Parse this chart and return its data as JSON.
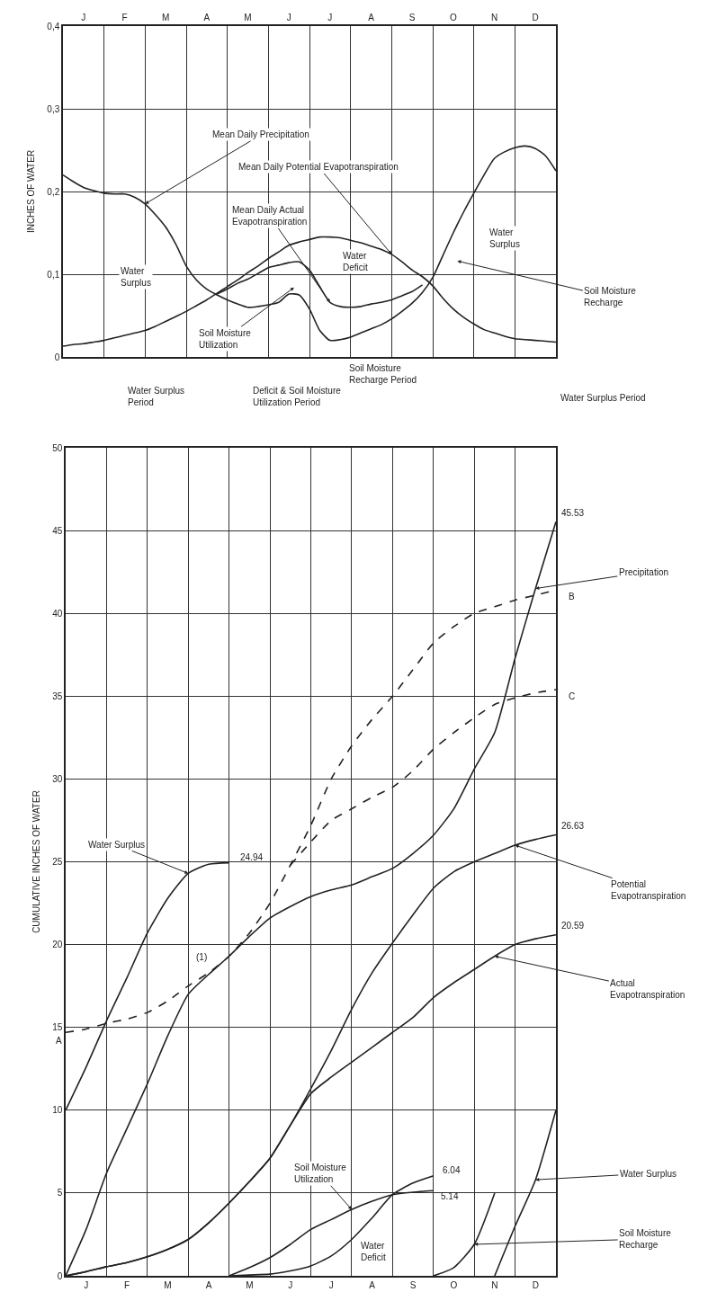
{
  "chart_data": [
    {
      "type": "line",
      "ylabel": "INCHES OF WATER",
      "categories": [
        null,
        null,
        "J",
        null,
        null,
        null,
        "F",
        null,
        null,
        null,
        "M",
        null,
        null,
        null,
        "A",
        null,
        null,
        null,
        "M",
        null,
        null,
        null,
        "J",
        null,
        null,
        null,
        "J",
        null,
        null,
        null,
        "A",
        null,
        null,
        null,
        "S",
        null,
        null,
        null,
        "O",
        null,
        null,
        null,
        "N",
        null,
        null,
        null,
        "D",
        null,
        null
      ],
      "ylim": [
        0,
        0.4
      ],
      "yticks": [
        0,
        {
          "value": 0.1,
          "label": "0,1"
        },
        {
          "value": 0.2,
          "label": "0,2"
        },
        {
          "value": 0.3,
          "label": "0,3"
        },
        {
          "value": 0.4,
          "label": "0,4"
        }
      ],
      "grid": true,
      "series": [
        {
          "name": "Mean Daily Precipitation",
          "color": "#222222",
          "values": [
            0.22,
            0.212,
            0.205,
            0.201,
            0.198,
            0.197,
            0.197,
            0.193,
            0.185,
            0.172,
            0.157,
            0.136,
            0.11,
            0.093,
            0.082,
            0.075,
            0.069,
            0.064,
            0.06,
            0.061,
            0.063,
            0.066,
            0.076,
            0.075,
            0.058,
            0.032,
            0.02,
            0.021,
            0.024,
            0.029,
            0.034,
            0.039,
            0.046,
            0.055,
            0.065,
            0.078,
            0.096,
            0.123,
            0.15,
            0.175,
            0.198,
            0.22,
            0.24,
            0.248,
            0.253,
            0.255,
            0.252,
            0.243,
            0.225
          ]
        },
        {
          "name": "Mean Daily Potential Evapotranspiration",
          "color": "#222222",
          "values": [
            0.013,
            0.015,
            0.016,
            0.018,
            0.02,
            0.023,
            0.026,
            0.029,
            0.032,
            0.037,
            0.043,
            0.049,
            0.055,
            0.062,
            0.069,
            0.077,
            0.085,
            0.093,
            0.102,
            0.11,
            0.119,
            0.127,
            0.135,
            0.139,
            0.142,
            0.145,
            0.145,
            0.144,
            0.141,
            0.138,
            0.134,
            0.13,
            0.124,
            0.115,
            0.105,
            0.097,
            0.086,
            0.071,
            0.058,
            0.048,
            0.04,
            0.033,
            0.029,
            0.025,
            0.022,
            0.021,
            0.02,
            0.019,
            0.018
          ]
        },
        {
          "name": "Mean Daily Actual Evapotranspiration",
          "color": "#222222",
          "values": [
            null,
            null,
            null,
            null,
            null,
            null,
            null,
            null,
            null,
            null,
            null,
            null,
            null,
            null,
            null,
            0.076,
            0.082,
            0.089,
            0.094,
            0.101,
            0.108,
            0.111,
            0.114,
            0.115,
            0.105,
            0.085,
            0.066,
            0.061,
            0.06,
            0.061,
            0.064,
            0.066,
            0.069,
            0.074,
            0.079,
            0.087,
            null,
            null,
            null,
            null,
            null,
            null,
            null,
            null,
            null,
            null,
            null,
            null,
            null
          ]
        }
      ],
      "annotations": [
        "Water Surplus",
        "Water Deficit",
        "Soil Moisture Utilization",
        "Water Surplus",
        "Soil Moisture Recharge",
        "Water Surplus Period",
        "Deficit & Soil Moisture Utilization Period",
        "Soil Moisture Recharge Period",
        "Water Surplus Period"
      ]
    },
    {
      "type": "line",
      "ylabel": "CUMULATIVE INCHES OF WATER",
      "categories": [
        null,
        "J",
        null,
        "F",
        null,
        "M",
        null,
        "A",
        null,
        "M",
        null,
        "J",
        null,
        "J",
        null,
        "A",
        null,
        "S",
        null,
        "O",
        null,
        "N",
        null,
        "D",
        null
      ],
      "ylim": [
        0,
        50
      ],
      "yticks": [
        0,
        5,
        10,
        15,
        20,
        25,
        30,
        35,
        40,
        45,
        50
      ],
      "grid": true,
      "series": [
        {
          "name": "Precipitation",
          "color": "#222222",
          "values": [
            0,
            2.8,
            6.2,
            8.9,
            11.6,
            14.5,
            17,
            18.2,
            19.3,
            20.5,
            21.6,
            22.3,
            22.9,
            23.3,
            23.6,
            24.1,
            24.6,
            25.5,
            26.6,
            28.2,
            30.6,
            32.8,
            37.3,
            41.5,
            45.53
          ],
          "value_labels": [
            null,
            null,
            null,
            null,
            null,
            null,
            null,
            null,
            null,
            null,
            null,
            null,
            null,
            null,
            null,
            null,
            null,
            null,
            null,
            null,
            null,
            null,
            null,
            null,
            "45.53"
          ]
        },
        {
          "name": "Water Surplus",
          "color": "#222222",
          "values": [
            10,
            12.6,
            15.4,
            18,
            20.7,
            22.8,
            24.3,
            24.85,
            24.94,
            null,
            null,
            null,
            null,
            null,
            null,
            null,
            null,
            null,
            null,
            null,
            null,
            null,
            null,
            null,
            null
          ],
          "value_labels": [
            null,
            null,
            null,
            null,
            null,
            null,
            null,
            null,
            "24.94",
            null,
            null,
            null,
            null,
            null,
            null,
            null,
            null,
            null,
            null,
            null,
            null,
            null,
            null,
            null,
            null
          ]
        },
        {
          "name": "B",
          "color": "#222222",
          "line_style": "dashed",
          "values": [
            14.7,
            14.9,
            15.25,
            15.5,
            15.9,
            16.6,
            17.5,
            18.3,
            19.3,
            20.7,
            22.5,
            24.8,
            27.2,
            30,
            32,
            33.6,
            35,
            36.6,
            38.2,
            39.2,
            40,
            40.4,
            40.8,
            41.1,
            41.4
          ]
        },
        {
          "name": "C",
          "color": "#222222",
          "line_style": "dashed",
          "values": [
            null,
            null,
            null,
            null,
            null,
            null,
            null,
            null,
            null,
            null,
            null,
            24.8,
            26.2,
            27.5,
            28.2,
            28.9,
            29.5,
            30.5,
            31.8,
            32.8,
            33.7,
            34.5,
            34.9,
            35.2,
            35.4
          ]
        },
        {
          "name": "Potential Evapotranspiration",
          "color": "#222222",
          "values": [
            0,
            0.25,
            0.55,
            0.8,
            1.15,
            1.6,
            2.2,
            3.2,
            4.4,
            5.7,
            7.1,
            9.1,
            11.3,
            13.6,
            16.1,
            18.3,
            20.1,
            21.8,
            23.4,
            24.4,
            25,
            25.5,
            26,
            26.35,
            26.63
          ],
          "value_labels": [
            null,
            null,
            null,
            null,
            null,
            null,
            null,
            null,
            null,
            null,
            null,
            null,
            null,
            null,
            null,
            null,
            null,
            null,
            null,
            null,
            null,
            null,
            null,
            null,
            "26.63"
          ]
        },
        {
          "name": "Actual Evapotranspiration",
          "color": "#222222",
          "values": [
            0,
            0.25,
            0.55,
            0.8,
            1.15,
            1.6,
            2.2,
            3.2,
            4.4,
            5.7,
            7.1,
            9.1,
            11,
            12,
            12.9,
            13.8,
            14.7,
            15.6,
            16.8,
            17.7,
            18.5,
            19.3,
            20,
            20.35,
            20.59
          ],
          "value_labels": [
            null,
            null,
            null,
            null,
            null,
            null,
            null,
            null,
            null,
            null,
            null,
            null,
            null,
            null,
            null,
            null,
            null,
            null,
            null,
            null,
            null,
            null,
            null,
            null,
            "20.59"
          ]
        },
        {
          "name": "Soil Moisture Utilization",
          "color": "#222222",
          "values": [
            null,
            null,
            null,
            null,
            null,
            null,
            null,
            null,
            0,
            0.5,
            1.1,
            1.9,
            2.8,
            3.4,
            4,
            4.5,
            4.9,
            5.05,
            5.14,
            null,
            null,
            null,
            null,
            null,
            null
          ],
          "value_labels": [
            null,
            null,
            null,
            null,
            null,
            null,
            null,
            null,
            null,
            null,
            null,
            null,
            null,
            null,
            null,
            null,
            null,
            null,
            "5.14",
            null,
            null,
            null,
            null,
            null,
            null
          ]
        },
        {
          "name": "Water Deficit",
          "color": "#222222",
          "values": [
            null,
            null,
            null,
            null,
            null,
            null,
            null,
            null,
            0,
            0.05,
            0.1,
            0.3,
            0.6,
            1.2,
            2.2,
            3.5,
            4.9,
            5.6,
            6.04,
            null,
            null,
            null,
            null,
            null,
            null
          ],
          "value_labels": [
            null,
            null,
            null,
            null,
            null,
            null,
            null,
            null,
            null,
            null,
            null,
            null,
            null,
            null,
            null,
            null,
            null,
            null,
            "6.04",
            null,
            null,
            null,
            null,
            null,
            null
          ]
        },
        {
          "name": "Soil Moisture Recharge",
          "color": "#222222",
          "values": [
            null,
            null,
            null,
            null,
            null,
            null,
            null,
            null,
            null,
            null,
            null,
            null,
            null,
            null,
            null,
            null,
            null,
            null,
            0,
            0.5,
            1.9,
            5,
            null,
            null,
            null
          ]
        },
        {
          "name": "Water Surplus",
          "color": "#222222",
          "values": [
            null,
            null,
            null,
            null,
            null,
            null,
            null,
            null,
            null,
            null,
            null,
            null,
            null,
            null,
            null,
            null,
            null,
            null,
            null,
            null,
            null,
            0,
            3,
            5.8,
            10
          ]
        }
      ],
      "annotations": [
        "A",
        "(1)"
      ]
    }
  ]
}
